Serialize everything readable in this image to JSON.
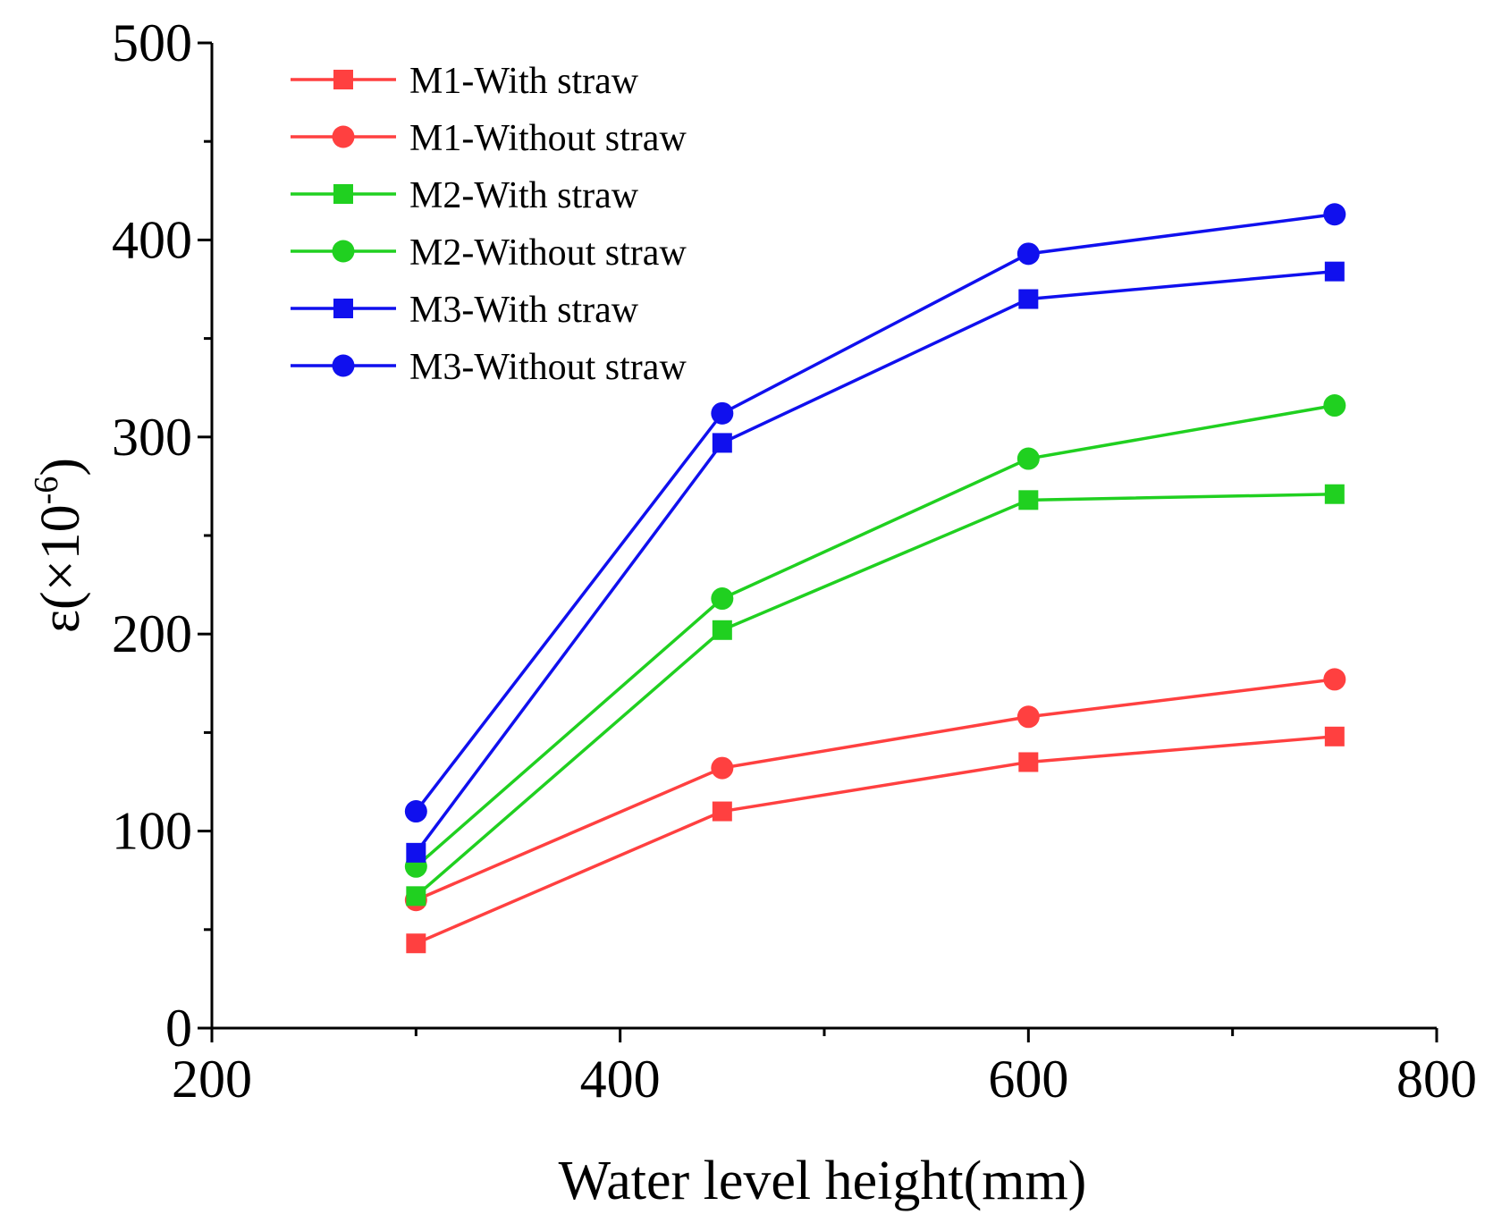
{
  "chart_data": {
    "type": "line",
    "title": "",
    "xlabel": "Water level height(mm)",
    "ylabel_parts": {
      "base": "ε(×10",
      "exp": "-6",
      "close": ")"
    },
    "xlim": [
      200,
      800
    ],
    "ylim": [
      0,
      500
    ],
    "x_major_ticks": [
      200,
      400,
      600,
      800
    ],
    "x_minor_ticks": [
      300,
      500,
      700
    ],
    "y_major_ticks": [
      0,
      100,
      200,
      300,
      400,
      500
    ],
    "y_minor_ticks": [
      50,
      150,
      250,
      350,
      450
    ],
    "x_tick_labels": [
      "200",
      "400",
      "600",
      "800"
    ],
    "y_tick_labels": [
      "0",
      "100",
      "200",
      "300",
      "400",
      "500"
    ],
    "legend_position": "top-left",
    "x": [
      300,
      450,
      600,
      750
    ],
    "series": [
      {
        "name": "M1-With straw",
        "marker": "square",
        "color": "#ff4040",
        "values": [
          43,
          110,
          135,
          148
        ]
      },
      {
        "name": "M1-Without straw",
        "marker": "circle",
        "color": "#ff4040",
        "values": [
          65,
          132,
          158,
          177
        ]
      },
      {
        "name": "M2-With straw",
        "marker": "square",
        "color": "#20d020",
        "values": [
          67,
          202,
          268,
          271
        ]
      },
      {
        "name": "M2-Without straw",
        "marker": "circle",
        "color": "#20d020",
        "values": [
          82,
          218,
          289,
          316
        ]
      },
      {
        "name": "M3-With straw",
        "marker": "square",
        "color": "#1010ee",
        "values": [
          89,
          297,
          370,
          384
        ]
      },
      {
        "name": "M3-Without straw",
        "marker": "circle",
        "color": "#1010ee",
        "values": [
          110,
          312,
          393,
          413
        ]
      }
    ]
  }
}
